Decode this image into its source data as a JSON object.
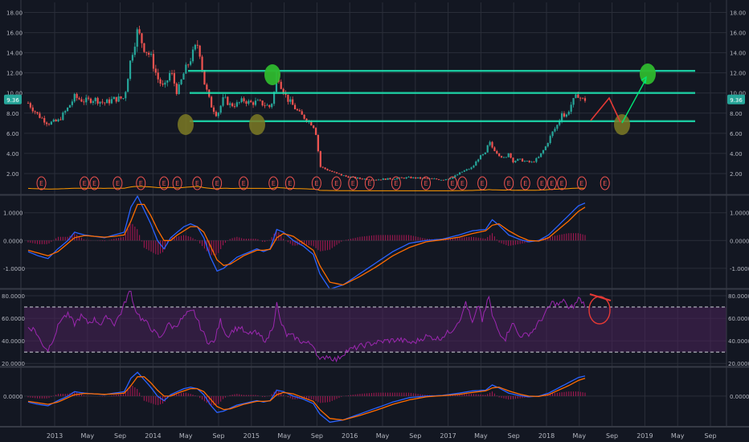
{
  "chart_data": [
    {
      "type": "candlestick",
      "pane": "price",
      "x_ticks": [
        "2013",
        "May",
        "Sep",
        "2014",
        "May",
        "Sep",
        "2015",
        "May",
        "Sep",
        "2016",
        "May",
        "Sep",
        "2017",
        "May",
        "Sep",
        "2018",
        "May",
        "Sep",
        "2019",
        "May",
        "Sep"
      ],
      "y_ticks": [
        "18.00",
        "16.00",
        "14.00",
        "12.00",
        "10.00",
        "8.00",
        "6.00",
        "4.00",
        "2.00"
      ],
      "ylim": [
        0,
        19
      ],
      "last_price_label": "9.36",
      "last_price": 9.36,
      "close_path": [
        [
          0,
          9.0
        ],
        [
          3,
          7.8
        ],
        [
          6,
          7.0
        ],
        [
          9,
          7.2
        ],
        [
          12,
          8.5
        ],
        [
          14,
          9.6
        ],
        [
          17,
          9.2
        ],
        [
          20,
          9.4
        ],
        [
          23,
          9.0
        ],
        [
          26,
          9.4
        ],
        [
          29,
          9.5
        ],
        [
          31,
          13.5
        ],
        [
          33,
          16.2
        ],
        [
          35,
          14.5
        ],
        [
          37,
          13.6
        ],
        [
          39,
          11.5
        ],
        [
          41,
          10.4
        ],
        [
          43,
          12.2
        ],
        [
          45,
          10.0
        ],
        [
          47,
          12.0
        ],
        [
          49,
          13.4
        ],
        [
          51,
          14.9
        ],
        [
          52,
          13.8
        ],
        [
          53,
          11.2
        ],
        [
          55,
          8.9
        ],
        [
          57,
          7.8
        ],
        [
          59,
          9.5
        ],
        [
          61,
          8.8
        ],
        [
          63,
          8.9
        ],
        [
          65,
          9.3
        ],
        [
          67,
          9.0
        ],
        [
          69,
          9.1
        ],
        [
          71,
          8.9
        ],
        [
          73,
          8.6
        ],
        [
          74,
          9.5
        ],
        [
          75,
          12.3
        ],
        [
          76,
          11.0
        ],
        [
          78,
          9.5
        ],
        [
          80,
          8.7
        ],
        [
          82,
          7.9
        ],
        [
          84,
          7.4
        ],
        [
          86,
          6.8
        ],
        [
          87,
          5.8
        ],
        [
          88,
          2.7
        ],
        [
          90,
          2.4
        ],
        [
          93,
          2.0
        ],
        [
          96,
          1.7
        ],
        [
          100,
          1.5
        ],
        [
          105,
          1.4
        ],
        [
          110,
          1.5
        ],
        [
          115,
          1.6
        ],
        [
          120,
          1.5
        ],
        [
          125,
          1.4
        ],
        [
          128,
          1.6
        ],
        [
          131,
          2.2
        ],
        [
          134,
          2.6
        ],
        [
          136,
          3.6
        ],
        [
          138,
          4.0
        ],
        [
          139,
          5.2
        ],
        [
          140,
          4.6
        ],
        [
          142,
          3.9
        ],
        [
          144,
          3.4
        ],
        [
          145,
          4.2
        ],
        [
          146,
          3.2
        ],
        [
          148,
          3.4
        ],
        [
          150,
          3.2
        ],
        [
          152,
          3.1
        ],
        [
          154,
          3.6
        ],
        [
          156,
          4.6
        ],
        [
          158,
          6.0
        ],
        [
          160,
          7.0
        ],
        [
          161,
          8.2
        ],
        [
          162,
          7.5
        ],
        [
          164,
          9.0
        ],
        [
          166,
          9.9
        ],
        [
          167,
          9.3
        ],
        [
          168,
          9.36
        ]
      ],
      "support_resistance_lines": [
        12.2,
        10.0,
        7.2
      ],
      "earnings_markers": {
        "label": "E",
        "positions": [
          4,
          17,
          20,
          27,
          34,
          41,
          45,
          51,
          57,
          65,
          74,
          79,
          87,
          93,
          98,
          103,
          111,
          120,
          128,
          131,
          137,
          145,
          150,
          155,
          158,
          161,
          167,
          174
        ]
      }
    },
    {
      "type": "line",
      "pane": "MACD",
      "y_ticks": [
        "1.0000",
        "0.0000",
        "-1.0000"
      ],
      "ylim": [
        -1.7,
        1.6
      ],
      "series": [
        {
          "color": "#2962ff",
          "role": "macd"
        },
        {
          "color": "#ff6d00",
          "role": "signal"
        },
        {
          "color": "#c2185b",
          "role": "histogram"
        }
      ],
      "macd": [
        [
          0,
          -0.4
        ],
        [
          3,
          -0.55
        ],
        [
          6,
          -0.65
        ],
        [
          9,
          -0.3
        ],
        [
          12,
          0.0
        ],
        [
          14,
          0.3
        ],
        [
          17,
          0.2
        ],
        [
          20,
          0.15
        ],
        [
          23,
          0.1
        ],
        [
          26,
          0.2
        ],
        [
          29,
          0.3
        ],
        [
          31,
          1.2
        ],
        [
          33,
          1.6
        ],
        [
          35,
          1.1
        ],
        [
          37,
          0.6
        ],
        [
          39,
          0.0
        ],
        [
          41,
          -0.3
        ],
        [
          43,
          0.1
        ],
        [
          45,
          0.3
        ],
        [
          47,
          0.5
        ],
        [
          49,
          0.6
        ],
        [
          51,
          0.5
        ],
        [
          53,
          0.1
        ],
        [
          55,
          -0.6
        ],
        [
          57,
          -1.1
        ],
        [
          59,
          -1.0
        ],
        [
          61,
          -0.8
        ],
        [
          63,
          -0.6
        ],
        [
          65,
          -0.5
        ],
        [
          67,
          -0.4
        ],
        [
          69,
          -0.3
        ],
        [
          71,
          -0.4
        ],
        [
          73,
          -0.3
        ],
        [
          75,
          0.4
        ],
        [
          77,
          0.3
        ],
        [
          80,
          0.0
        ],
        [
          83,
          -0.2
        ],
        [
          86,
          -0.5
        ],
        [
          88,
          -1.2
        ],
        [
          91,
          -1.75
        ],
        [
          95,
          -1.6
        ],
        [
          100,
          -1.2
        ],
        [
          105,
          -0.8
        ],
        [
          110,
          -0.4
        ],
        [
          115,
          -0.1
        ],
        [
          120,
          0.0
        ],
        [
          125,
          0.05
        ],
        [
          130,
          0.2
        ],
        [
          134,
          0.35
        ],
        [
          138,
          0.4
        ],
        [
          140,
          0.75
        ],
        [
          142,
          0.55
        ],
        [
          145,
          0.2
        ],
        [
          148,
          0.05
        ],
        [
          151,
          -0.05
        ],
        [
          154,
          0.0
        ],
        [
          157,
          0.2
        ],
        [
          160,
          0.55
        ],
        [
          163,
          0.9
        ],
        [
          166,
          1.25
        ],
        [
          168,
          1.35
        ]
      ],
      "signal": [
        [
          0,
          -0.35
        ],
        [
          3,
          -0.45
        ],
        [
          6,
          -0.55
        ],
        [
          9,
          -0.4
        ],
        [
          12,
          -0.1
        ],
        [
          14,
          0.1
        ],
        [
          17,
          0.18
        ],
        [
          20,
          0.15
        ],
        [
          23,
          0.12
        ],
        [
          26,
          0.15
        ],
        [
          29,
          0.2
        ],
        [
          31,
          0.7
        ],
        [
          33,
          1.3
        ],
        [
          35,
          1.3
        ],
        [
          37,
          0.9
        ],
        [
          39,
          0.4
        ],
        [
          41,
          0.0
        ],
        [
          43,
          0.0
        ],
        [
          45,
          0.2
        ],
        [
          47,
          0.35
        ],
        [
          49,
          0.5
        ],
        [
          51,
          0.5
        ],
        [
          53,
          0.3
        ],
        [
          55,
          -0.2
        ],
        [
          57,
          -0.7
        ],
        [
          59,
          -0.9
        ],
        [
          61,
          -0.85
        ],
        [
          63,
          -0.7
        ],
        [
          65,
          -0.55
        ],
        [
          67,
          -0.45
        ],
        [
          69,
          -0.35
        ],
        [
          71,
          -0.35
        ],
        [
          73,
          -0.32
        ],
        [
          75,
          0.1
        ],
        [
          77,
          0.25
        ],
        [
          80,
          0.15
        ],
        [
          83,
          -0.1
        ],
        [
          86,
          -0.35
        ],
        [
          88,
          -0.9
        ],
        [
          91,
          -1.5
        ],
        [
          95,
          -1.6
        ],
        [
          100,
          -1.3
        ],
        [
          105,
          -0.95
        ],
        [
          110,
          -0.55
        ],
        [
          115,
          -0.25
        ],
        [
          120,
          -0.05
        ],
        [
          125,
          0.03
        ],
        [
          130,
          0.12
        ],
        [
          134,
          0.25
        ],
        [
          138,
          0.35
        ],
        [
          140,
          0.55
        ],
        [
          142,
          0.6
        ],
        [
          145,
          0.35
        ],
        [
          148,
          0.15
        ],
        [
          151,
          0.0
        ],
        [
          154,
          -0.02
        ],
        [
          157,
          0.1
        ],
        [
          160,
          0.4
        ],
        [
          163,
          0.7
        ],
        [
          166,
          1.05
        ],
        [
          168,
          1.2
        ]
      ]
    },
    {
      "type": "line",
      "pane": "RSI",
      "y_ticks": [
        "80.0000",
        "60.0000",
        "40.0000",
        "20.0000"
      ],
      "ylim": [
        18,
        85
      ],
      "band_upper": 70,
      "band_lower": 30,
      "line_color": "#9c27b0",
      "band_color": "#4a235a",
      "values": [
        [
          0,
          52
        ],
        [
          2,
          50
        ],
        [
          4,
          38
        ],
        [
          6,
          32
        ],
        [
          8,
          45
        ],
        [
          10,
          60
        ],
        [
          12,
          63
        ],
        [
          14,
          55
        ],
        [
          16,
          62
        ],
        [
          18,
          56
        ],
        [
          20,
          59
        ],
        [
          22,
          55
        ],
        [
          24,
          62
        ],
        [
          26,
          55
        ],
        [
          28,
          65
        ],
        [
          30,
          80
        ],
        [
          31,
          85
        ],
        [
          32,
          70
        ],
        [
          34,
          60
        ],
        [
          36,
          55
        ],
        [
          38,
          48
        ],
        [
          40,
          42
        ],
        [
          42,
          55
        ],
        [
          44,
          52
        ],
        [
          46,
          58
        ],
        [
          48,
          64
        ],
        [
          50,
          66
        ],
        [
          52,
          52
        ],
        [
          54,
          40
        ],
        [
          56,
          38
        ],
        [
          58,
          58
        ],
        [
          60,
          44
        ],
        [
          62,
          50
        ],
        [
          64,
          52
        ],
        [
          66,
          45
        ],
        [
          68,
          48
        ],
        [
          70,
          44
        ],
        [
          72,
          40
        ],
        [
          74,
          55
        ],
        [
          75,
          73
        ],
        [
          76,
          58
        ],
        [
          78,
          45
        ],
        [
          80,
          44
        ],
        [
          82,
          40
        ],
        [
          84,
          38
        ],
        [
          86,
          37
        ],
        [
          88,
          22
        ],
        [
          90,
          27
        ],
        [
          93,
          23
        ],
        [
          96,
          31
        ],
        [
          100,
          35
        ],
        [
          104,
          38
        ],
        [
          108,
          40
        ],
        [
          112,
          41
        ],
        [
          116,
          38
        ],
        [
          120,
          44
        ],
        [
          124,
          42
        ],
        [
          128,
          50
        ],
        [
          131,
          63
        ],
        [
          132,
          75
        ],
        [
          134,
          55
        ],
        [
          136,
          72
        ],
        [
          137,
          58
        ],
        [
          138,
          68
        ],
        [
          139,
          80
        ],
        [
          140,
          62
        ],
        [
          142,
          48
        ],
        [
          144,
          42
        ],
        [
          146,
          57
        ],
        [
          148,
          45
        ],
        [
          150,
          45
        ],
        [
          152,
          48
        ],
        [
          154,
          56
        ],
        [
          156,
          64
        ],
        [
          158,
          74
        ],
        [
          160,
          72
        ],
        [
          162,
          76
        ],
        [
          163,
          68
        ],
        [
          165,
          72
        ],
        [
          166,
          78
        ],
        [
          168,
          72
        ]
      ]
    },
    {
      "type": "line",
      "pane": "MACD-2",
      "y_ticks": [
        "0.0000"
      ],
      "ylim": [
        -1.7,
        1.6
      ],
      "series": [
        {
          "color": "#2962ff",
          "role": "macd"
        },
        {
          "color": "#ff6d00",
          "role": "signal"
        },
        {
          "color": "#c2185b",
          "role": "histogram"
        }
      ]
    }
  ],
  "colors": {
    "background": "#131722",
    "grid": "#2a2e39",
    "axis_text": "#b2b5be",
    "candle_up": "#26a69a",
    "candle_down": "#ef5350",
    "level_line": "#1de9b6",
    "earnings_circle": "#ef5350",
    "olive_marker": "#7c7a24",
    "green_marker": "#2eb82e",
    "annotation_red": "#e53935",
    "annotation_green": "#00e676"
  }
}
